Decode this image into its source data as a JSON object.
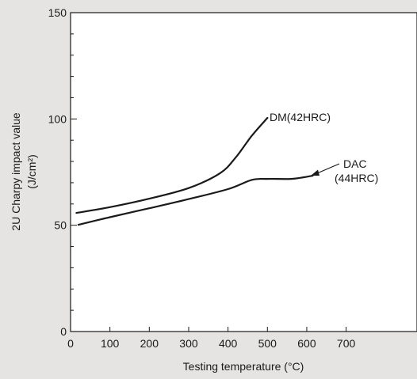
{
  "chart_data": {
    "type": "line",
    "xlabel": "Testing temperature (°C)",
    "ylabel_line1": "2U Charpy impact value",
    "ylabel_line2": "(J/cm²)",
    "xlim": [
      0,
      880
    ],
    "ylim": [
      0,
      150
    ],
    "x_ticks": [
      0,
      100,
      200,
      300,
      400,
      500,
      600,
      700
    ],
    "x_tick_labels": [
      "0",
      "100",
      "200",
      "300",
      "400",
      "500",
      "600",
      "700"
    ],
    "y_ticks": [
      0,
      50,
      100,
      150
    ],
    "y_tick_labels": [
      "0",
      "50",
      "100",
      "150"
    ],
    "y_minor_step": 10,
    "grid": false,
    "series": [
      {
        "name": "DM(42HRC)",
        "x": [
          15,
          100,
          200,
          300,
          380,
          420,
          460,
          500
        ],
        "y": [
          55.8,
          58.5,
          62.5,
          67.5,
          74.5,
          82,
          92,
          100.5
        ]
      },
      {
        "name": "DAC (44HRC)",
        "x": [
          20,
          100,
          200,
          300,
          400,
          460,
          500,
          560,
          600,
          615
        ],
        "y": [
          50.2,
          53.8,
          58,
          62.3,
          67,
          71.3,
          71.8,
          71.8,
          72.8,
          73.3
        ]
      }
    ],
    "annotations": [
      {
        "label": "DM(42HRC)",
        "series": 0,
        "pointer": "none"
      },
      {
        "label_line1": "DAC",
        "label_line2": "(44HRC)",
        "series": 1,
        "pointer": "arrow"
      }
    ]
  }
}
